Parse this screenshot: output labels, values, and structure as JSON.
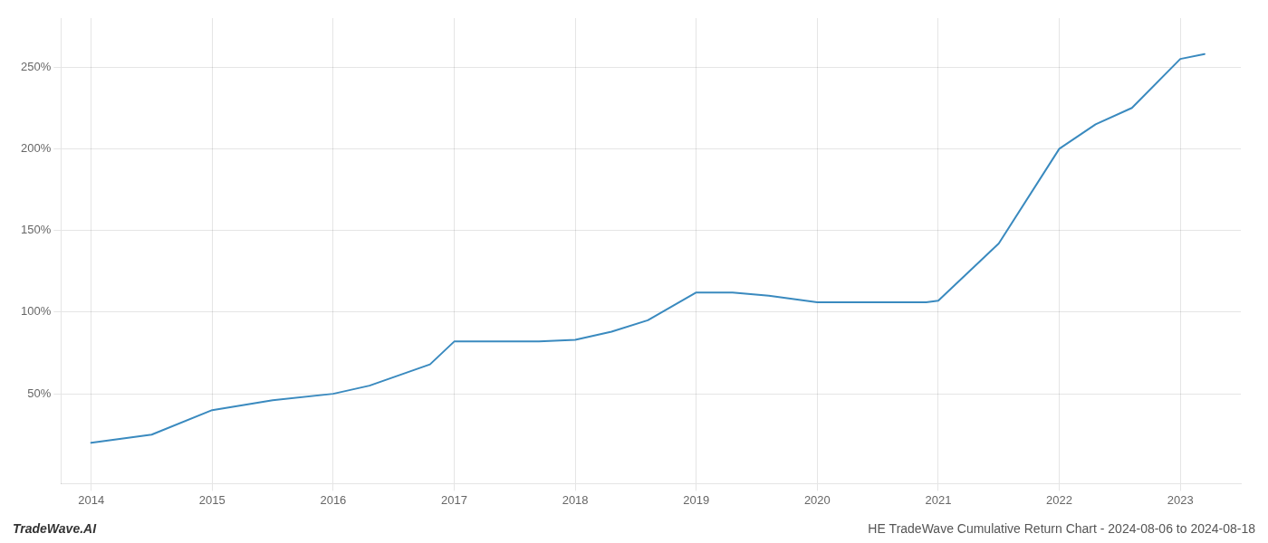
{
  "chart_data": {
    "type": "line",
    "title": "HE TradeWave Cumulative Return Chart - 2024-08-06 to 2024-08-18",
    "annotations": [
      "TradeWave.AI"
    ],
    "x": [
      2014,
      2014.5,
      2015,
      2015.5,
      2016,
      2016.3,
      2016.8,
      2017,
      2017.4,
      2017.7,
      2018,
      2018.3,
      2018.6,
      2019,
      2019.3,
      2019.6,
      2020,
      2020.3,
      2020.6,
      2020.9,
      2021,
      2021.5,
      2022,
      2022.3,
      2022.6,
      2023,
      2023.2
    ],
    "values": [
      20,
      25,
      40,
      46,
      50,
      55,
      68,
      82,
      82,
      82,
      83,
      88,
      95,
      112,
      112,
      110,
      106,
      106,
      106,
      106,
      107,
      142,
      200,
      215,
      225,
      255,
      258
    ],
    "color": "#3a8abf",
    "xlim": [
      2013.75,
      2023.5
    ],
    "ylim": [
      -5,
      280
    ],
    "xticks": [
      2014,
      2015,
      2016,
      2017,
      2018,
      2019,
      2020,
      2021,
      2022,
      2023
    ],
    "yticks": [
      {
        "value": 50,
        "label": "50%"
      },
      {
        "value": 100,
        "label": "100%"
      },
      {
        "value": 150,
        "label": "150%"
      },
      {
        "value": 200,
        "label": "200%"
      },
      {
        "value": 250,
        "label": "250%"
      }
    ],
    "grid": true
  }
}
